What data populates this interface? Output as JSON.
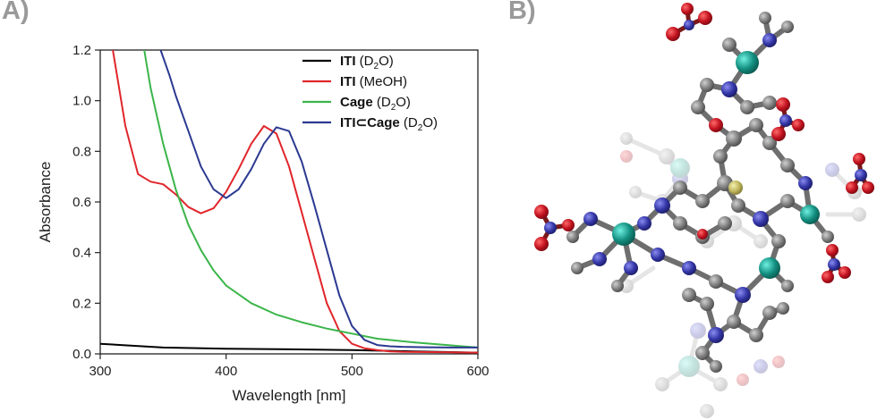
{
  "panels": {
    "a_label": "A)",
    "b_label": "B)"
  },
  "chart_data": {
    "type": "line",
    "title": "",
    "xlabel": "Wavelength [nm]",
    "ylabel": "Absorbance",
    "xlim": [
      300,
      600
    ],
    "ylim": [
      0,
      1.2
    ],
    "x_ticks": [
      300,
      400,
      500,
      600
    ],
    "x_tick_labels": [
      "300",
      "400",
      "500",
      "600"
    ],
    "y_ticks": [
      0,
      0.2,
      0.4,
      0.6,
      0.8,
      1.0,
      1.2
    ],
    "y_tick_labels": [
      "0.0",
      "0.2",
      "0.4",
      "0.6",
      "0.8",
      "1.0",
      "1.2"
    ],
    "grid": false,
    "legend_position": "top-right",
    "series": [
      {
        "name": "ITI (D2O)",
        "legend_bold": "ITI",
        "legend_rest": "(D",
        "legend_sub": "2",
        "legend_end": "O)",
        "color": "#000000",
        "x": [
          300,
          350,
          400,
          450,
          500,
          550,
          600
        ],
        "y": [
          0.04,
          0.025,
          0.02,
          0.018,
          0.015,
          0.01,
          0.005
        ]
      },
      {
        "name": "ITI (MeOH)",
        "legend_bold": "ITI",
        "legend_rest": "(MeOH)",
        "legend_sub": "",
        "legend_end": "",
        "color": "#e0262b",
        "x": [
          310,
          320,
          330,
          340,
          350,
          360,
          370,
          380,
          390,
          400,
          410,
          420,
          430,
          440,
          450,
          460,
          470,
          480,
          490,
          500,
          510,
          520,
          530,
          540,
          560,
          580,
          600
        ],
        "y": [
          1.2,
          0.9,
          0.71,
          0.68,
          0.67,
          0.63,
          0.58,
          0.555,
          0.575,
          0.64,
          0.73,
          0.83,
          0.9,
          0.87,
          0.74,
          0.56,
          0.38,
          0.2,
          0.09,
          0.04,
          0.022,
          0.015,
          0.01,
          0.008,
          0.007,
          0.006,
          0.005
        ]
      },
      {
        "name": "Cage (D2O)",
        "legend_bold": "Cage",
        "legend_rest": "(D",
        "legend_sub": "2",
        "legend_end": "O)",
        "color": "#3bb54a",
        "x": [
          335,
          340,
          350,
          360,
          370,
          380,
          390,
          400,
          420,
          440,
          460,
          480,
          500,
          520,
          550,
          600
        ],
        "y": [
          1.2,
          1.05,
          0.83,
          0.65,
          0.51,
          0.41,
          0.33,
          0.27,
          0.2,
          0.155,
          0.125,
          0.1,
          0.08,
          0.06,
          0.045,
          0.025
        ]
      },
      {
        "name": "ITI⊂Cage (D2O)",
        "legend_bold": "ITI⊂Cage",
        "legend_rest": "(D",
        "legend_sub": "2",
        "legend_end": "O)",
        "color": "#2b3990",
        "x": [
          348,
          355,
          360,
          370,
          380,
          390,
          400,
          410,
          420,
          430,
          440,
          450,
          460,
          470,
          480,
          490,
          500,
          510,
          520,
          530,
          540,
          560,
          580,
          600
        ],
        "y": [
          1.2,
          1.1,
          1.02,
          0.88,
          0.74,
          0.65,
          0.615,
          0.65,
          0.73,
          0.83,
          0.895,
          0.88,
          0.76,
          0.59,
          0.41,
          0.23,
          0.11,
          0.055,
          0.035,
          0.03,
          0.028,
          0.026,
          0.025,
          0.025
        ]
      }
    ]
  }
}
